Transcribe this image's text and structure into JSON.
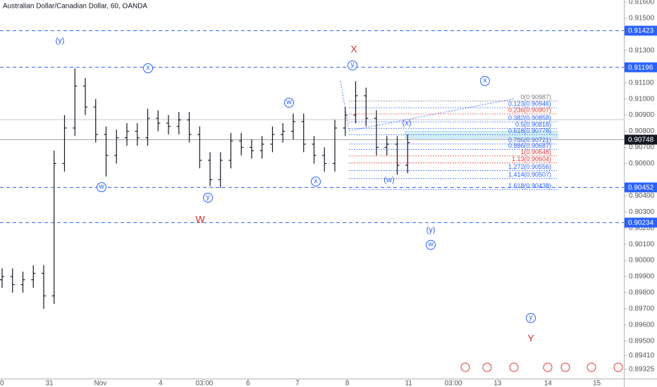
{
  "chart_data": {
    "type": "ohlc",
    "title": "Australian Dollar/Canadian Dollar, 60, OANDA",
    "xlim": [
      0,
      120
    ],
    "xticks": [
      {
        "value": 0.4,
        "label": "0"
      },
      {
        "value": 9.5,
        "label": "31"
      },
      {
        "value": 19.3,
        "label": "Nov"
      },
      {
        "value": 30.9,
        "label": "4"
      },
      {
        "value": 39.3,
        "label": "03:00"
      },
      {
        "value": 47.7,
        "label": "6"
      },
      {
        "value": 57.2,
        "label": "7"
      },
      {
        "value": 66.8,
        "label": "8"
      },
      {
        "value": 78.6,
        "label": "11"
      },
      {
        "value": 87.2,
        "label": "03:00"
      },
      {
        "value": 95.7,
        "label": "13"
      },
      {
        "value": 105.4,
        "label": "14"
      },
      {
        "value": 114.8,
        "label": "15"
      }
    ],
    "ylim": [
      0.89268,
      0.91613
    ],
    "yticks": [
      {
        "value": 0.916,
        "label": "0.91600"
      },
      {
        "value": 0.915,
        "label": "0.91500"
      },
      {
        "value": 0.913,
        "label": "0.91300"
      },
      {
        "value": 0.911,
        "label": "0.91100"
      },
      {
        "value": 0.91,
        "label": "0.91000"
      },
      {
        "value": 0.909,
        "label": "0.90900"
      },
      {
        "value": 0.908,
        "label": "0.90800"
      },
      {
        "value": 0.907,
        "label": "0.90700"
      },
      {
        "value": 0.906,
        "label": "0.90600"
      },
      {
        "value": 0.904,
        "label": "0.90400"
      },
      {
        "value": 0.903,
        "label": "0.90300"
      },
      {
        "value": 0.902,
        "label": "0.90200"
      },
      {
        "value": 0.901,
        "label": "0.90100"
      },
      {
        "value": 0.9,
        "label": "0.90000"
      },
      {
        "value": 0.899,
        "label": "0.89900"
      },
      {
        "value": 0.898,
        "label": "0.89800"
      },
      {
        "value": 0.897,
        "label": "0.89700"
      },
      {
        "value": 0.896,
        "label": "0.89600"
      },
      {
        "value": 0.895,
        "label": "0.89500"
      },
      {
        "value": 0.8941,
        "label": "0.89410"
      },
      {
        "value": 0.89325,
        "label": "0.89325"
      }
    ],
    "color": "#131722",
    "x": [
      0,
      2,
      4,
      6,
      8,
      10,
      12,
      14,
      16,
      18,
      20,
      22,
      24,
      26,
      28,
      30,
      32,
      34,
      36,
      38,
      40,
      42,
      44,
      46,
      48,
      50,
      52,
      54,
      56,
      58,
      60,
      62,
      64,
      66,
      68,
      70,
      72,
      74,
      76,
      78
    ],
    "open": [
      0.8988,
      0.899,
      0.8985,
      0.8988,
      0.8992,
      0.8978,
      0.906,
      0.9082,
      0.9108,
      0.9095,
      0.9078,
      0.9065,
      0.9076,
      0.908,
      0.9076,
      0.9088,
      0.9085,
      0.9083,
      0.9087,
      0.9078,
      0.9062,
      0.905,
      0.9062,
      0.9074,
      0.907,
      0.9068,
      0.9072,
      0.9078,
      0.908,
      0.9086,
      0.9072,
      0.9065,
      0.906,
      0.9082,
      0.909,
      0.9102,
      0.9088,
      0.907,
      0.9072,
      0.9059
    ],
    "high": [
      0.8995,
      0.8995,
      0.8993,
      0.8997,
      0.8997,
      0.9068,
      0.909,
      0.9119,
      0.9113,
      0.91,
      0.9083,
      0.9081,
      0.9085,
      0.9085,
      0.9094,
      0.9093,
      0.909,
      0.9092,
      0.9092,
      0.9083,
      0.9067,
      0.9067,
      0.9079,
      0.9079,
      0.9075,
      0.9077,
      0.9083,
      0.9085,
      0.9091,
      0.9091,
      0.9077,
      0.907,
      0.9087,
      0.9095,
      0.9111,
      0.9107,
      0.9093,
      0.9077,
      0.9077,
      0.9078
    ],
    "low": [
      0.8983,
      0.898,
      0.898,
      0.8983,
      0.897,
      0.8973,
      0.9055,
      0.9077,
      0.909,
      0.9073,
      0.9052,
      0.906,
      0.9071,
      0.9071,
      0.9071,
      0.908,
      0.9078,
      0.9078,
      0.9073,
      0.9057,
      0.9046,
      0.9045,
      0.9057,
      0.9065,
      0.9063,
      0.9063,
      0.9067,
      0.9073,
      0.9075,
      0.9067,
      0.906,
      0.9055,
      0.9055,
      0.9077,
      0.9085,
      0.9083,
      0.9065,
      0.9065,
      0.9053,
      0.9054
    ],
    "close": [
      0.899,
      0.8985,
      0.8988,
      0.8992,
      0.8978,
      0.906,
      0.9082,
      0.9108,
      0.9095,
      0.9078,
      0.9065,
      0.9076,
      0.908,
      0.9076,
      0.9088,
      0.9085,
      0.9083,
      0.9087,
      0.9078,
      0.9062,
      0.905,
      0.9062,
      0.9074,
      0.907,
      0.9068,
      0.9072,
      0.9078,
      0.908,
      0.9086,
      0.9072,
      0.9065,
      0.906,
      0.9082,
      0.909,
      0.9102,
      0.9088,
      0.907,
      0.9072,
      0.9059,
      0.9073
    ],
    "levels": [
      {
        "value": 0.91423,
        "label": "0.91423",
        "color": "#2962ff",
        "dashed": true
      },
      {
        "value": 0.91196,
        "label": "0.91196",
        "color": "#2962ff",
        "dashed": true
      },
      {
        "value": 0.90452,
        "label": "0.90452",
        "color": "#2962ff",
        "dashed": true
      },
      {
        "value": 0.90234,
        "label": "0.90234",
        "color": "#2962ff",
        "dashed": true
      },
      {
        "value": 0.90748,
        "label": "0.90748",
        "color": "#131722",
        "dashed": false
      }
    ],
    "fib": [
      {
        "value": 0.90987,
        "label": "0(0.90987)",
        "color": "#787b86"
      },
      {
        "value": 0.90946,
        "label": "0.123(0.90946)",
        "color": "#2962ff"
      },
      {
        "value": 0.90907,
        "label": "0.236(0.90907)",
        "color": "#e53935"
      },
      {
        "value": 0.90858,
        "label": "0.382(0.90858)",
        "color": "#2962ff"
      },
      {
        "value": 0.90818,
        "label": "0.5(0.90818)",
        "color": "#2962ff"
      },
      {
        "value": 0.90778,
        "label": "0.618(0.90778)",
        "color": "#2962ff",
        "fill": "#d4eef7"
      },
      {
        "value": 0.90721,
        "label": "0.786(0.90721)",
        "color": "#2962ff"
      },
      {
        "value": 0.90687,
        "label": "0.886(0.90687)",
        "color": "#2962ff"
      },
      {
        "value": 0.90648,
        "label": "1(0.90648)",
        "color": "#e53935"
      },
      {
        "value": 0.90604,
        "label": "1.13(0.90604)",
        "color": "#e53935"
      },
      {
        "value": 0.90556,
        "label": "1.272(0.90556)",
        "color": "#2962ff"
      },
      {
        "value": 0.90507,
        "label": "1.414(0.90507)",
        "color": "#2962ff"
      },
      {
        "value": 0.90438,
        "label": "1.618(0.90438)",
        "color": "#2962ff"
      }
    ],
    "annotations": [
      {
        "text": "(y)",
        "color": "#2962ff",
        "circled": false
      },
      {
        "text": "X",
        "color": "#d32f2f",
        "circled": false
      },
      {
        "text": "x",
        "color": "#2962ff",
        "circled": true
      },
      {
        "text": "y",
        "color": "#2962ff",
        "circled": true
      },
      {
        "text": "x",
        "color": "#2962ff",
        "circled": true
      },
      {
        "text": "w",
        "color": "#2962ff",
        "circled": true
      },
      {
        "text": "(x)",
        "color": "#2962ff",
        "circled": false
      },
      {
        "text": "w",
        "color": "#2962ff",
        "circled": true
      },
      {
        "text": "y",
        "color": "#2962ff",
        "circled": true
      },
      {
        "text": "x",
        "color": "#2962ff",
        "circled": true
      },
      {
        "text": "(w)",
        "color": "#2962ff",
        "circled": false
      },
      {
        "text": "W",
        "color": "#d32f2f",
        "circled": false
      },
      {
        "text": "(y)",
        "color": "#2962ff",
        "circled": false
      },
      {
        "text": "w",
        "color": "#2962ff",
        "circled": true
      },
      {
        "text": "y",
        "color": "#2962ff",
        "circled": true
      },
      {
        "text": "Y",
        "color": "#d32f2f",
        "circled": false
      }
    ]
  }
}
